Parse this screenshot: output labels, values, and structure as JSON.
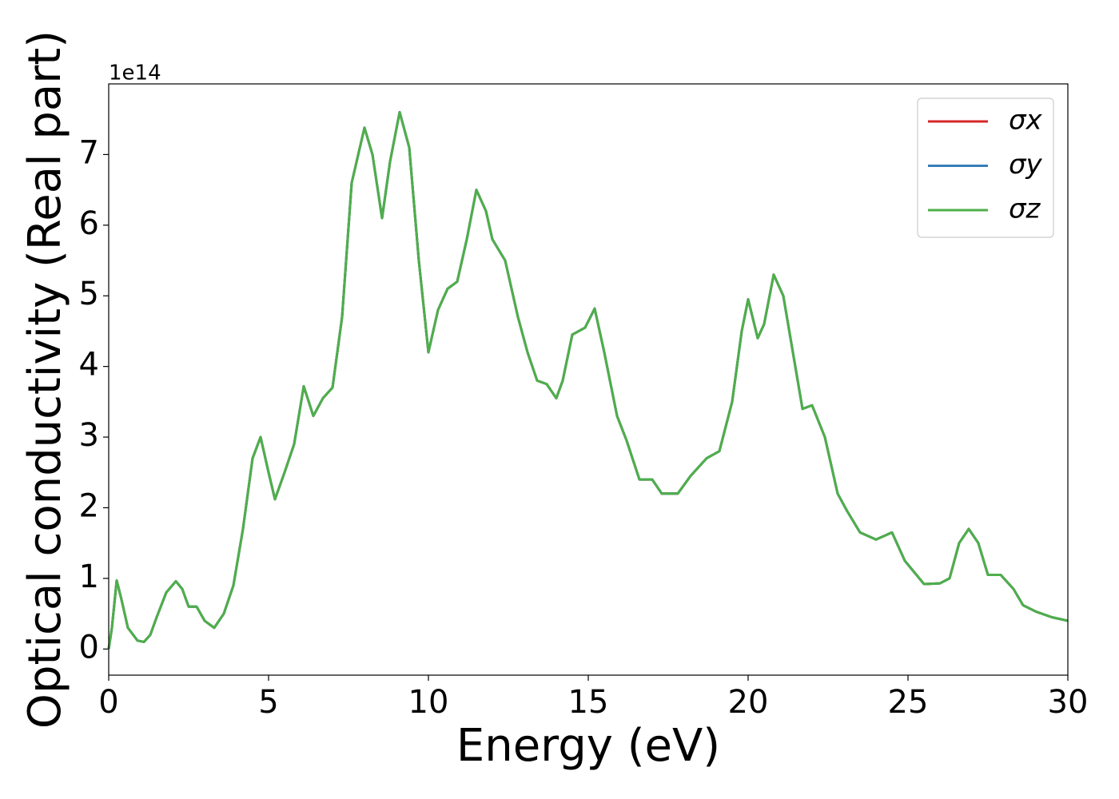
{
  "chart_data": {
    "type": "line",
    "x_label": "Energy (eV)",
    "y_label": "Optical conductivity (Real part)",
    "y_offset_label": "1e14",
    "x": [
      0,
      0.1,
      0.25,
      0.4,
      0.6,
      0.9,
      1.1,
      1.3,
      1.5,
      1.8,
      2.1,
      2.3,
      2.5,
      2.75,
      3.0,
      3.3,
      3.6,
      3.9,
      4.2,
      4.5,
      4.75,
      5.0,
      5.2,
      5.5,
      5.8,
      6.1,
      6.4,
      6.7,
      7.0,
      7.3,
      7.6,
      8.0,
      8.25,
      8.55,
      8.8,
      9.1,
      9.4,
      9.7,
      10.0,
      10.3,
      10.6,
      10.9,
      11.2,
      11.5,
      11.8,
      12.0,
      12.4,
      12.8,
      13.1,
      13.4,
      13.7,
      14.0,
      14.2,
      14.5,
      14.9,
      15.2,
      15.5,
      15.9,
      16.2,
      16.6,
      17.0,
      17.3,
      17.8,
      18.2,
      18.7,
      19.1,
      19.5,
      19.8,
      20.0,
      20.3,
      20.5,
      20.8,
      21.1,
      21.4,
      21.7,
      22.0,
      22.4,
      22.8,
      23.1,
      23.5,
      24.0,
      24.5,
      24.9,
      25.5,
      26.0,
      26.3,
      26.6,
      26.9,
      27.2,
      27.5,
      27.9,
      28.3,
      28.6,
      29.0,
      29.5,
      30
    ],
    "series": [
      {
        "name": "σx",
        "color": "#d62728",
        "values": [
          0,
          0.3,
          0.97,
          0.7,
          0.3,
          0.12,
          0.1,
          0.2,
          0.45,
          0.8,
          0.96,
          0.85,
          0.6,
          0.6,
          0.4,
          0.3,
          0.5,
          0.9,
          1.7,
          2.7,
          3.0,
          2.5,
          2.12,
          2.5,
          2.9,
          3.72,
          3.3,
          3.55,
          3.7,
          4.7,
          6.6,
          7.38,
          7.0,
          6.1,
          6.9,
          7.6,
          7.1,
          5.5,
          4.2,
          4.8,
          5.1,
          5.2,
          5.8,
          6.5,
          6.2,
          5.8,
          5.5,
          4.7,
          4.2,
          3.8,
          3.75,
          3.55,
          3.8,
          4.45,
          4.55,
          4.82,
          4.2,
          3.3,
          2.95,
          2.4,
          2.4,
          2.2,
          2.2,
          2.45,
          2.7,
          2.8,
          3.5,
          4.5,
          4.95,
          4.4,
          4.6,
          5.3,
          5.0,
          4.2,
          3.4,
          3.45,
          3.0,
          2.2,
          1.95,
          1.65,
          1.55,
          1.65,
          1.25,
          0.92,
          0.93,
          1.0,
          1.5,
          1.7,
          1.5,
          1.05,
          1.05,
          0.85,
          0.62,
          0.53,
          0.45,
          0.4
        ]
      },
      {
        "name": "σy",
        "color": "#377eb8",
        "values": [
          0,
          0.3,
          0.97,
          0.7,
          0.3,
          0.12,
          0.1,
          0.2,
          0.45,
          0.8,
          0.96,
          0.85,
          0.6,
          0.6,
          0.4,
          0.3,
          0.5,
          0.9,
          1.7,
          2.7,
          3.0,
          2.5,
          2.12,
          2.5,
          2.9,
          3.72,
          3.3,
          3.55,
          3.7,
          4.7,
          6.6,
          7.38,
          7.0,
          6.1,
          6.9,
          7.6,
          7.1,
          5.5,
          4.2,
          4.8,
          5.1,
          5.2,
          5.8,
          6.5,
          6.2,
          5.8,
          5.5,
          4.7,
          4.2,
          3.8,
          3.75,
          3.55,
          3.8,
          4.45,
          4.55,
          4.82,
          4.2,
          3.3,
          2.95,
          2.4,
          2.4,
          2.2,
          2.2,
          2.45,
          2.7,
          2.8,
          3.5,
          4.5,
          4.95,
          4.4,
          4.6,
          5.3,
          5.0,
          4.2,
          3.4,
          3.45,
          3.0,
          2.2,
          1.95,
          1.65,
          1.55,
          1.65,
          1.25,
          0.92,
          0.93,
          1.0,
          1.5,
          1.7,
          1.5,
          1.05,
          1.05,
          0.85,
          0.62,
          0.53,
          0.45,
          0.4
        ]
      },
      {
        "name": "σz",
        "color": "#4daf4a",
        "values": [
          0,
          0.3,
          0.97,
          0.7,
          0.3,
          0.12,
          0.1,
          0.2,
          0.45,
          0.8,
          0.96,
          0.85,
          0.6,
          0.6,
          0.4,
          0.3,
          0.5,
          0.9,
          1.7,
          2.7,
          3.0,
          2.5,
          2.12,
          2.5,
          2.9,
          3.72,
          3.3,
          3.55,
          3.7,
          4.7,
          6.6,
          7.38,
          7.0,
          6.1,
          6.9,
          7.6,
          7.1,
          5.5,
          4.2,
          4.8,
          5.1,
          5.2,
          5.8,
          6.5,
          6.2,
          5.8,
          5.5,
          4.7,
          4.2,
          3.8,
          3.75,
          3.55,
          3.8,
          4.45,
          4.55,
          4.82,
          4.2,
          3.3,
          2.95,
          2.4,
          2.4,
          2.2,
          2.2,
          2.45,
          2.7,
          2.8,
          3.5,
          4.5,
          4.95,
          4.4,
          4.6,
          5.3,
          5.0,
          4.2,
          3.4,
          3.45,
          3.0,
          2.2,
          1.95,
          1.65,
          1.55,
          1.65,
          1.25,
          0.92,
          0.93,
          1.0,
          1.5,
          1.7,
          1.5,
          1.05,
          1.05,
          0.85,
          0.62,
          0.53,
          0.45,
          0.4
        ]
      }
    ],
    "xlim": [
      0,
      30
    ],
    "xticks": [
      0,
      5,
      10,
      15,
      20,
      25,
      30
    ],
    "ylim": [
      -0.37,
      8.0
    ],
    "yticks": [
      0,
      1,
      2,
      3,
      4,
      5,
      6,
      7
    ],
    "grid": false,
    "legend": "upper right"
  }
}
